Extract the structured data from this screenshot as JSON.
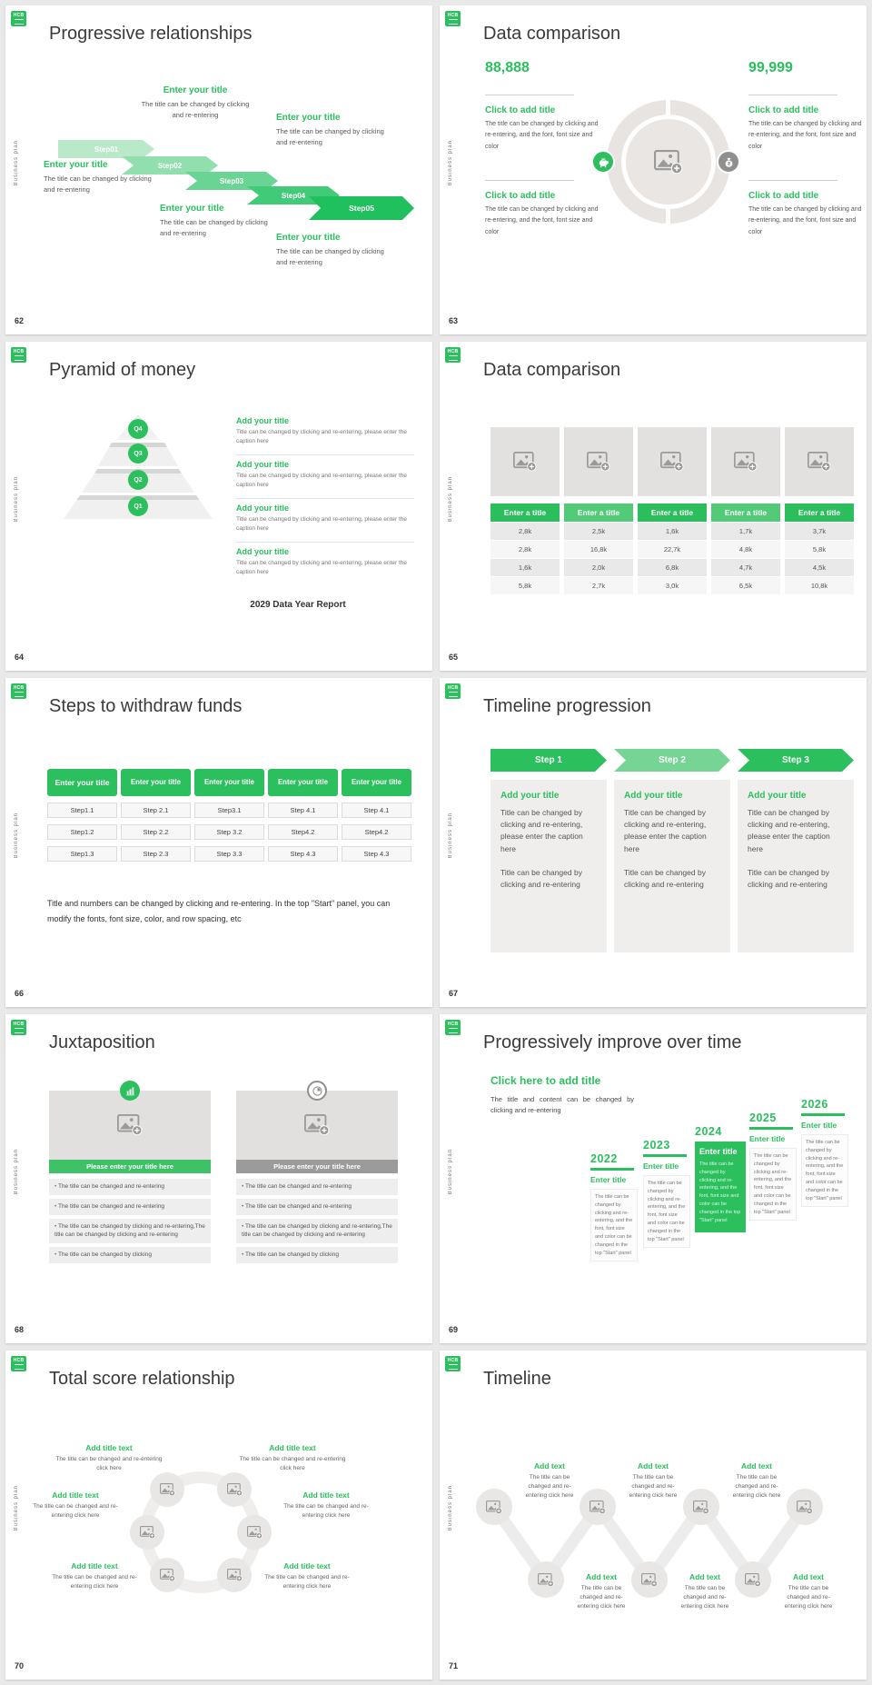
{
  "brand": {
    "logo_text": "HCB",
    "sidebar_label": "Business plan",
    "accent_green": "#2bbf5e",
    "light_green": "#76d595",
    "panel_gray": "#efeeec"
  },
  "slides": {
    "s62": {
      "number": "62",
      "title": "Progressive relationships",
      "steps": [
        "Step01",
        "Step02",
        "Step03",
        "Step04",
        "Step05"
      ],
      "blocks": [
        {
          "title": "Enter your title",
          "body": "The title can be changed by clicking and re-entering"
        },
        {
          "title": "Enter your title",
          "body": "The title can be changed by clicking and re-entering"
        },
        {
          "title": "Enter your title",
          "body": "The title can be changed by clicking and re-entering"
        },
        {
          "title": "Enter your title",
          "body": "The title can be changed by clicking and re-entering"
        },
        {
          "title": "Enter your title",
          "body": "The title can be changed by clicking and re-entering"
        }
      ]
    },
    "s63": {
      "number": "63",
      "title": "Data comparison",
      "left_value": "88,888",
      "right_value": "99,999",
      "blocks": [
        {
          "title": "Click to add title",
          "body": "The title can be changed by clicking and re-entering, and the font, font size and color"
        },
        {
          "title": "Click to add title",
          "body": "The title can be changed by clicking and re-entering, and the font, font size and color"
        },
        {
          "title": "Click to add title",
          "body": "The title can be changed by clicking and re-entering, and the font, font size and color"
        },
        {
          "title": "Click to add title",
          "body": "The title can be changed by clicking and re-entering, and the font, font size and color"
        }
      ]
    },
    "s64": {
      "number": "64",
      "title": "Pyramid of money",
      "levels": [
        "Q4",
        "Q3",
        "Q2",
        "Q1"
      ],
      "items": [
        {
          "title": "Add your title",
          "body": "Title can be changed by clicking and re-entering, please enter the caption here"
        },
        {
          "title": "Add your title",
          "body": "Title can be changed by clicking and re-entering, please enter the caption here"
        },
        {
          "title": "Add your title",
          "body": "Title can be changed by clicking and re-entering, please enter the caption here"
        },
        {
          "title": "Add your title",
          "body": "Title can be changed by clicking and re-entering, please enter the caption here"
        }
      ],
      "footer": "2029 Data Year Report"
    },
    "s65": {
      "number": "65",
      "title": "Data comparison",
      "headers": [
        "Enter a title",
        "Enter a title",
        "Enter a title",
        "Enter a title",
        "Enter a title"
      ],
      "rows": [
        [
          "2,8k",
          "2,5k",
          "1,6k",
          "1,7k",
          "3,7k"
        ],
        [
          "2,8k",
          "16,8k",
          "22,7k",
          "4,8k",
          "5,8k"
        ],
        [
          "1,6k",
          "2,0k",
          "6,8k",
          "4,7k",
          "4,5k"
        ],
        [
          "5,8k",
          "2,7k",
          "3,0k",
          "6,5k",
          "10,8k"
        ]
      ]
    },
    "s66": {
      "number": "66",
      "title": "Steps to withdraw funds",
      "headers": [
        "Enter your title",
        "Enter your title",
        "Enter your title",
        "Enter your title",
        "Enter your title"
      ],
      "steps": [
        [
          "Step1.1",
          "Step1.2",
          "Step1.3"
        ],
        [
          "Step 2.1",
          "Step 2.2",
          "Step 2.3"
        ],
        [
          "Step3.1",
          "Step 3.2",
          "Step 3.3"
        ],
        [
          "Step 4.1",
          "Step4.2",
          "Step 4.3"
        ],
        [
          "Step 4.1",
          "Step4.2",
          "Step 4.3"
        ]
      ],
      "footer": "Title and numbers can be changed by clicking and re-entering. In the top \"Start\" panel, you can modify the fonts, font size, color, and row spacing, etc"
    },
    "s67": {
      "number": "67",
      "title": "Timeline progression",
      "steps": [
        "Step 1",
        "Step 2",
        "Step 3"
      ],
      "panels": [
        {
          "title": "Add your title",
          "body1": "Title can be changed by clicking and re-entering, please enter the caption here",
          "body2": "Title can be changed by clicking and re-entering"
        },
        {
          "title": "Add your title",
          "body1": "Title can be changed by clicking and re-entering, please enter the caption here",
          "body2": "Title can be changed by clicking and re-entering"
        },
        {
          "title": "Add your title",
          "body1": "Title can be changed by clicking and re-entering, please enter the caption here",
          "body2": "Title can be changed by clicking and re-entering"
        }
      ]
    },
    "s68": {
      "number": "68",
      "title": "Juxtaposition",
      "banner": "Please enter your title here",
      "bullets": [
        "The title can be changed and re-entering",
        "The title can be changed and re-entering",
        "The title can be changed by clicking and re-entering,The title can be changed by clicking and re-entering",
        "The title can be changed by clicking"
      ]
    },
    "s69": {
      "number": "69",
      "title": "Progressively improve over time",
      "heading": "Click here to add title",
      "subheading": "The title and content can be changed by clicking and re-entering",
      "years": [
        {
          "year": "2022",
          "label": "Enter title",
          "body": "The title can be changed by clicking and re-entering, and the font, font size and color can be changed in the top \"Start\" panel"
        },
        {
          "year": "2023",
          "label": "Enter title",
          "body": "The title can be changed by clicking and re-entering, and the font, font size and color can be changed in the top \"Start\" panel"
        },
        {
          "year": "2024",
          "label": "Enter title",
          "body": "The title can be changed by clicking and re-entering, and the font, font size and color can be changed in the top \"Start\" panel"
        },
        {
          "year": "2025",
          "label": "Enter title",
          "body": "The title can be changed by clicking and re-entering, and the font, font size and color can be changed in the top \"Start\" panel"
        },
        {
          "year": "2026",
          "label": "Enter title",
          "body": "The title can be changed by clicking and re-entering, and the font, font size and color can be changed in the top \"Start\" panel"
        }
      ]
    },
    "s70": {
      "number": "70",
      "title": "Total score relationship",
      "items": [
        {
          "title": "Add title text",
          "body": "The title can be changed and re-entering click here"
        },
        {
          "title": "Add title text",
          "body": "The title can be changed and re-entering click here"
        },
        {
          "title": "Add title text",
          "body": "The title can be changed and re-entering click here"
        },
        {
          "title": "Add title text",
          "body": "The title can be changed and re-entering click here"
        },
        {
          "title": "Add title text",
          "body": "The title can be changed and re-entering click here"
        },
        {
          "title": "Add title text",
          "body": "The title can be changed and re-entering click here"
        }
      ]
    },
    "s71": {
      "number": "71",
      "title": "Timeline",
      "items": [
        {
          "title": "Add text",
          "body": "The title can be changed and re-entering click here"
        },
        {
          "title": "Add text",
          "body": "The title can be changed and re-entering click here"
        },
        {
          "title": "Add text",
          "body": "The title can be changed and re-entering click here"
        },
        {
          "title": "Add text",
          "body": "The title can be changed and re-entering click here"
        },
        {
          "title": "Add text",
          "body": "The title can be changed and re-entering click here"
        },
        {
          "title": "Add text",
          "body": "The title can be changed and re-entering click here"
        }
      ]
    }
  }
}
